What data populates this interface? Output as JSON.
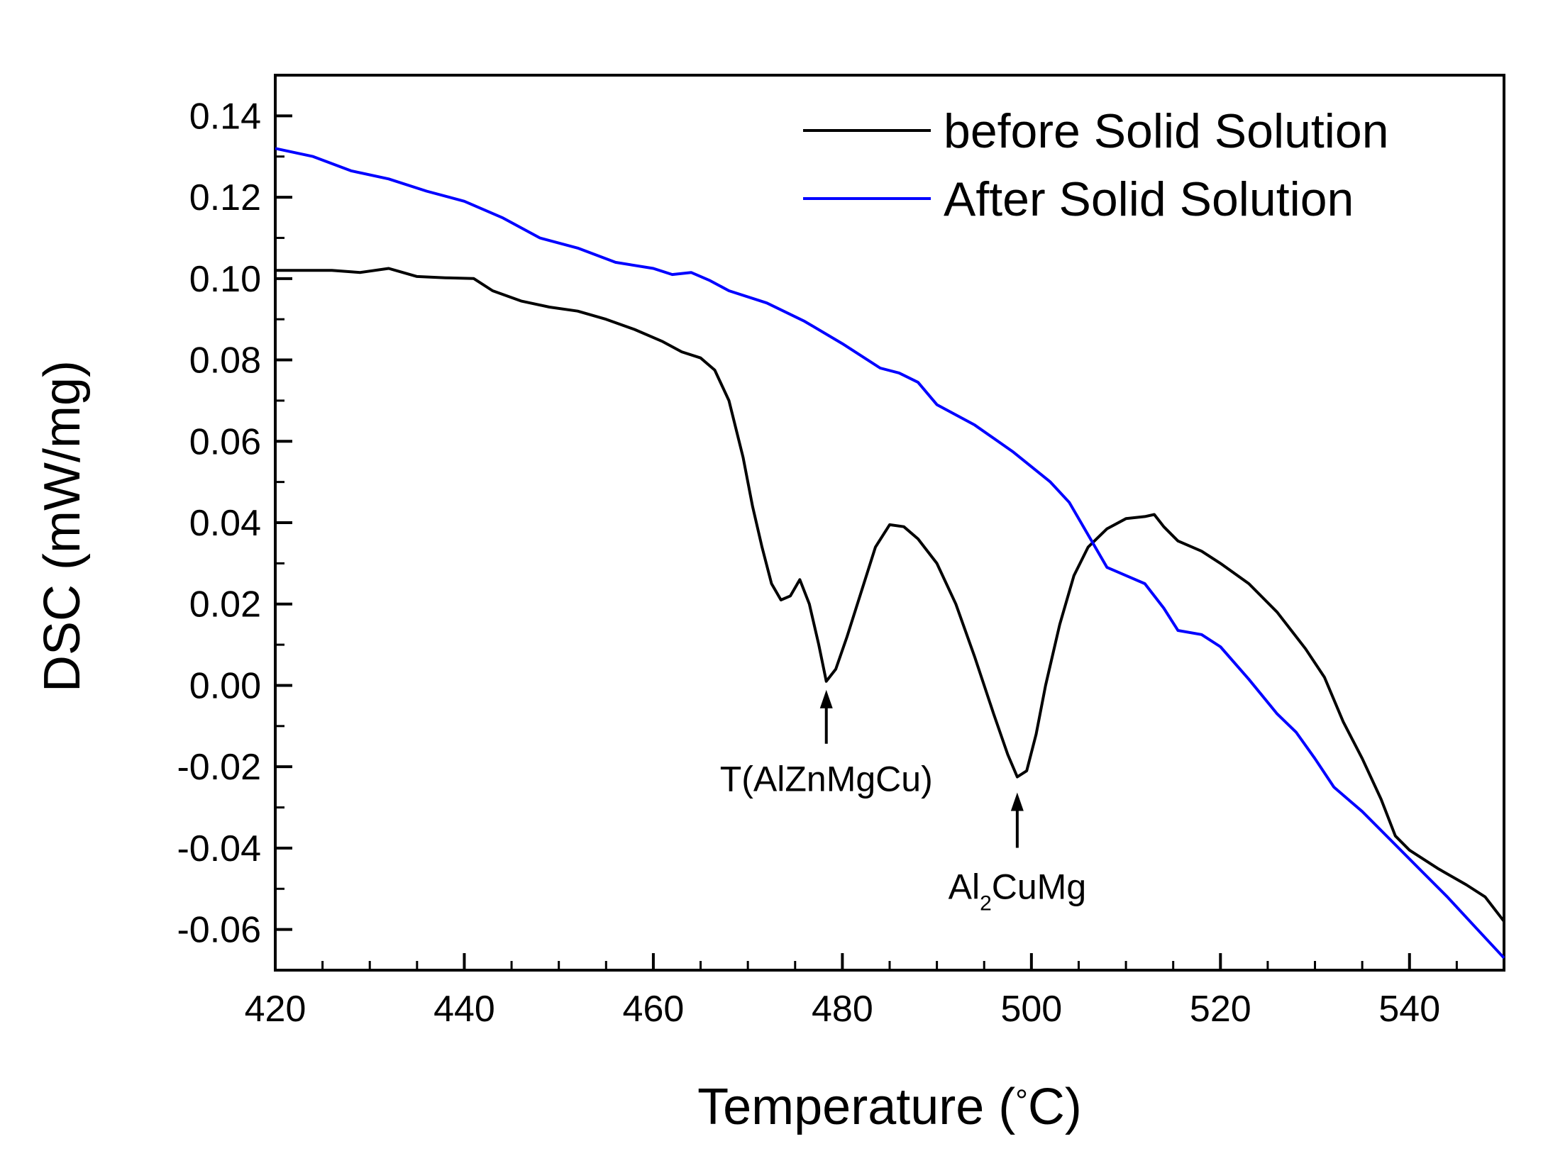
{
  "chart_data": {
    "type": "line",
    "title": "",
    "xlabel": "Temperature (°C)",
    "xlabel_parts": {
      "prefix": "Temperature (",
      "degree": "°",
      "suffix": "C)"
    },
    "ylabel": "DSC (mW/mg)",
    "xlim": [
      420,
      550
    ],
    "ylim": [
      -0.07,
      0.15
    ],
    "x_ticks": [
      420,
      440,
      460,
      480,
      500,
      520,
      540
    ],
    "x_tick_labels": [
      "420",
      "440",
      "460",
      "480",
      "500",
      "520",
      "540"
    ],
    "y_ticks": [
      -0.06,
      -0.04,
      -0.02,
      0.0,
      0.02,
      0.04,
      0.06,
      0.08,
      0.1,
      0.12,
      0.14
    ],
    "y_tick_labels": [
      "-0.06",
      "-0.04",
      "-0.02",
      "0.00",
      "0.02",
      "0.04",
      "0.06",
      "0.08",
      "0.10",
      "0.12",
      "0.14"
    ],
    "grid": false,
    "legend_position": "top-right",
    "series": [
      {
        "name": "before Solid Solution",
        "color": "#000000",
        "points": [
          [
            420,
            0.102
          ],
          [
            426,
            0.102
          ],
          [
            429,
            0.1015
          ],
          [
            432,
            0.1025
          ],
          [
            435,
            0.1005
          ],
          [
            438,
            0.1002
          ],
          [
            441,
            0.1
          ],
          [
            443,
            0.097
          ],
          [
            446,
            0.0945
          ],
          [
            449,
            0.093
          ],
          [
            452,
            0.092
          ],
          [
            455,
            0.09
          ],
          [
            458,
            0.0875
          ],
          [
            461,
            0.0845
          ],
          [
            463,
            0.082
          ],
          [
            465,
            0.0805
          ],
          [
            466.5,
            0.0775
          ],
          [
            468,
            0.07
          ],
          [
            469.5,
            0.056
          ],
          [
            470.5,
            0.044
          ],
          [
            471.5,
            0.034
          ],
          [
            472.5,
            0.025
          ],
          [
            473.5,
            0.021
          ],
          [
            474.5,
            0.022
          ],
          [
            475.5,
            0.026
          ],
          [
            476.5,
            0.02
          ],
          [
            477.5,
            0.01
          ],
          [
            478.3,
            0.001
          ],
          [
            479.3,
            0.004
          ],
          [
            480.5,
            0.012
          ],
          [
            482,
            0.023
          ],
          [
            483.5,
            0.034
          ],
          [
            485,
            0.0395
          ],
          [
            486.5,
            0.039
          ],
          [
            488,
            0.036
          ],
          [
            490,
            0.03
          ],
          [
            492,
            0.02
          ],
          [
            494,
            0.007
          ],
          [
            496,
            -0.007
          ],
          [
            497.5,
            -0.017
          ],
          [
            498.5,
            -0.0225
          ],
          [
            499.5,
            -0.021
          ],
          [
            500.5,
            -0.012
          ],
          [
            501.5,
            0.0
          ],
          [
            503,
            0.015
          ],
          [
            504.5,
            0.027
          ],
          [
            506,
            0.034
          ],
          [
            508,
            0.0385
          ],
          [
            510,
            0.041
          ],
          [
            512,
            0.0415
          ],
          [
            513,
            0.042
          ],
          [
            514,
            0.039
          ],
          [
            515.5,
            0.0355
          ],
          [
            518,
            0.033
          ],
          [
            520,
            0.03
          ],
          [
            523,
            0.025
          ],
          [
            526,
            0.018
          ],
          [
            529,
            0.009
          ],
          [
            531,
            0.002
          ],
          [
            533,
            -0.009
          ],
          [
            535,
            -0.018
          ],
          [
            537,
            -0.028
          ],
          [
            538.5,
            -0.037
          ],
          [
            540,
            -0.0405
          ],
          [
            543,
            -0.045
          ],
          [
            546,
            -0.049
          ],
          [
            548,
            -0.052
          ],
          [
            550,
            -0.058
          ]
        ]
      },
      {
        "name": "After Solid Solution",
        "color": "#0000ff",
        "points": [
          [
            420,
            0.132
          ],
          [
            424,
            0.13
          ],
          [
            428,
            0.1265
          ],
          [
            432,
            0.1245
          ],
          [
            436,
            0.1215
          ],
          [
            440,
            0.119
          ],
          [
            444,
            0.115
          ],
          [
            448,
            0.11
          ],
          [
            452,
            0.1075
          ],
          [
            456,
            0.104
          ],
          [
            460,
            0.1025
          ],
          [
            462,
            0.101
          ],
          [
            464,
            0.1015
          ],
          [
            466,
            0.0995
          ],
          [
            468,
            0.097
          ],
          [
            472,
            0.094
          ],
          [
            476,
            0.0895
          ],
          [
            480,
            0.084
          ],
          [
            484,
            0.078
          ],
          [
            486,
            0.0768
          ],
          [
            488,
            0.0745
          ],
          [
            490,
            0.069
          ],
          [
            494,
            0.064
          ],
          [
            498,
            0.0575
          ],
          [
            502,
            0.05
          ],
          [
            504,
            0.045
          ],
          [
            506,
            0.037
          ],
          [
            508,
            0.029
          ],
          [
            510,
            0.027
          ],
          [
            512,
            0.025
          ],
          [
            514,
            0.019
          ],
          [
            515.5,
            0.0135
          ],
          [
            518,
            0.0125
          ],
          [
            520,
            0.0095
          ],
          [
            523,
            0.0015
          ],
          [
            526,
            -0.007
          ],
          [
            528,
            -0.0115
          ],
          [
            530,
            -0.018
          ],
          [
            532,
            -0.025
          ],
          [
            535,
            -0.031
          ],
          [
            538,
            -0.038
          ],
          [
            541,
            -0.045
          ],
          [
            544,
            -0.052
          ],
          [
            547,
            -0.0595
          ],
          [
            550,
            -0.067
          ]
        ]
      }
    ],
    "annotations": [
      {
        "label": "T(AlZnMgCu)",
        "x": 478.3,
        "y": 0.001
      },
      {
        "label": "Al2CuMg",
        "label_main": "Al",
        "label_sub": "2",
        "label_rest": "CuMg",
        "x": 498.5,
        "y": -0.0225
      }
    ]
  }
}
